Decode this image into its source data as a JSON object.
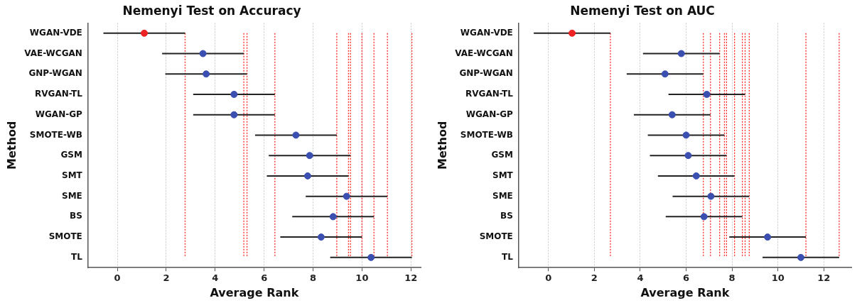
{
  "chart_data": [
    {
      "type": "scatter",
      "title": "Nemenyi Test on Accuracy",
      "xlabel": "Average Rank",
      "ylabel": "Method",
      "categories": [
        "WGAN-VDE",
        "VAE-WCGAN",
        "GNP-WGAN",
        "RVGAN-TL",
        "WGAN-GP",
        "SMOTE-WB",
        "GSM",
        "SMT",
        "SME",
        "BS",
        "SMOTE",
        "TL"
      ],
      "values": [
        1.1,
        3.5,
        3.63,
        4.77,
        4.77,
        7.3,
        7.86,
        7.78,
        9.37,
        8.82,
        8.33,
        10.37
      ],
      "errors": [
        1.67,
        1.67,
        1.67,
        1.67,
        1.67,
        1.67,
        1.67,
        1.67,
        1.67,
        1.67,
        1.67,
        1.67
      ],
      "colors": [
        "#ee2222",
        "#3a4fb0",
        "#3a4fb0",
        "#3a4fb0",
        "#3a4fb0",
        "#3a4fb0",
        "#3a4fb0",
        "#3a4fb0",
        "#3a4fb0",
        "#3a4fb0",
        "#3a4fb0",
        "#3a4fb0"
      ],
      "orientation": "horizontal",
      "xlim": [
        -1.2,
        12.4
      ],
      "xticks": [
        0,
        2,
        4,
        6,
        8,
        10,
        12
      ],
      "grid": "x",
      "legend": false,
      "marker": "circle",
      "ref_lines": [
        {
          "axis": "x",
          "value": 2.77,
          "color": "#ff2020",
          "line_style": "dotted"
        },
        {
          "axis": "x",
          "value": 5.17,
          "color": "#ff2020",
          "line_style": "dotted"
        },
        {
          "axis": "x",
          "value": 5.3,
          "color": "#ff2020",
          "line_style": "dotted"
        },
        {
          "axis": "x",
          "value": 6.44,
          "color": "#ff2020",
          "line_style": "dotted"
        },
        {
          "axis": "x",
          "value": 8.97,
          "color": "#ff2020",
          "line_style": "dotted"
        },
        {
          "axis": "x",
          "value": 9.53,
          "color": "#ff2020",
          "line_style": "dotted"
        },
        {
          "axis": "x",
          "value": 9.45,
          "color": "#ff2020",
          "line_style": "dotted"
        },
        {
          "axis": "x",
          "value": 11.04,
          "color": "#ff2020",
          "line_style": "dotted"
        },
        {
          "axis": "x",
          "value": 10.49,
          "color": "#ff2020",
          "line_style": "dotted"
        },
        {
          "axis": "x",
          "value": 10.0,
          "color": "#ff2020",
          "line_style": "dotted"
        },
        {
          "axis": "x",
          "value": 12.04,
          "color": "#ff2020",
          "line_style": "dotted"
        }
      ]
    },
    {
      "type": "scatter",
      "title": "Nemenyi Test on AUC",
      "xlabel": "Average Rank",
      "ylabel": "Method",
      "categories": [
        "WGAN-VDE",
        "VAE-WCGAN",
        "GNP-WGAN",
        "RVGAN-TL",
        "WGAN-GP",
        "SMOTE-WB",
        "GSM",
        "SMT",
        "SME",
        "BS",
        "SMOTE",
        "TL"
      ],
      "values": [
        1.03,
        5.79,
        5.08,
        6.9,
        5.39,
        6.0,
        6.09,
        6.44,
        7.08,
        6.78,
        9.55,
        11.0
      ],
      "errors": [
        1.67,
        1.67,
        1.67,
        1.67,
        1.67,
        1.67,
        1.67,
        1.67,
        1.67,
        1.67,
        1.67,
        1.67
      ],
      "colors": [
        "#ee2222",
        "#3a4fb0",
        "#3a4fb0",
        "#3a4fb0",
        "#3a4fb0",
        "#3a4fb0",
        "#3a4fb0",
        "#3a4fb0",
        "#3a4fb0",
        "#3a4fb0",
        "#3a4fb0",
        "#3a4fb0"
      ],
      "orientation": "horizontal",
      "xlim": [
        -1.3,
        13.2
      ],
      "xticks": [
        0,
        2,
        4,
        6,
        8,
        10,
        12
      ],
      "grid": "x",
      "legend": false,
      "marker": "circle",
      "ref_lines": [
        {
          "axis": "x",
          "value": 2.7,
          "color": "#ff2020",
          "line_style": "dotted"
        },
        {
          "axis": "x",
          "value": 7.46,
          "color": "#ff2020",
          "line_style": "dotted"
        },
        {
          "axis": "x",
          "value": 6.75,
          "color": "#ff2020",
          "line_style": "dotted"
        },
        {
          "axis": "x",
          "value": 8.57,
          "color": "#ff2020",
          "line_style": "dotted"
        },
        {
          "axis": "x",
          "value": 7.06,
          "color": "#ff2020",
          "line_style": "dotted"
        },
        {
          "axis": "x",
          "value": 7.67,
          "color": "#ff2020",
          "line_style": "dotted"
        },
        {
          "axis": "x",
          "value": 7.76,
          "color": "#ff2020",
          "line_style": "dotted"
        },
        {
          "axis": "x",
          "value": 8.11,
          "color": "#ff2020",
          "line_style": "dotted"
        },
        {
          "axis": "x",
          "value": 8.75,
          "color": "#ff2020",
          "line_style": "dotted"
        },
        {
          "axis": "x",
          "value": 8.45,
          "color": "#ff2020",
          "line_style": "dotted"
        },
        {
          "axis": "x",
          "value": 11.22,
          "color": "#ff2020",
          "line_style": "dotted"
        },
        {
          "axis": "x",
          "value": 12.67,
          "color": "#ff2020",
          "line_style": "dotted"
        }
      ]
    }
  ]
}
